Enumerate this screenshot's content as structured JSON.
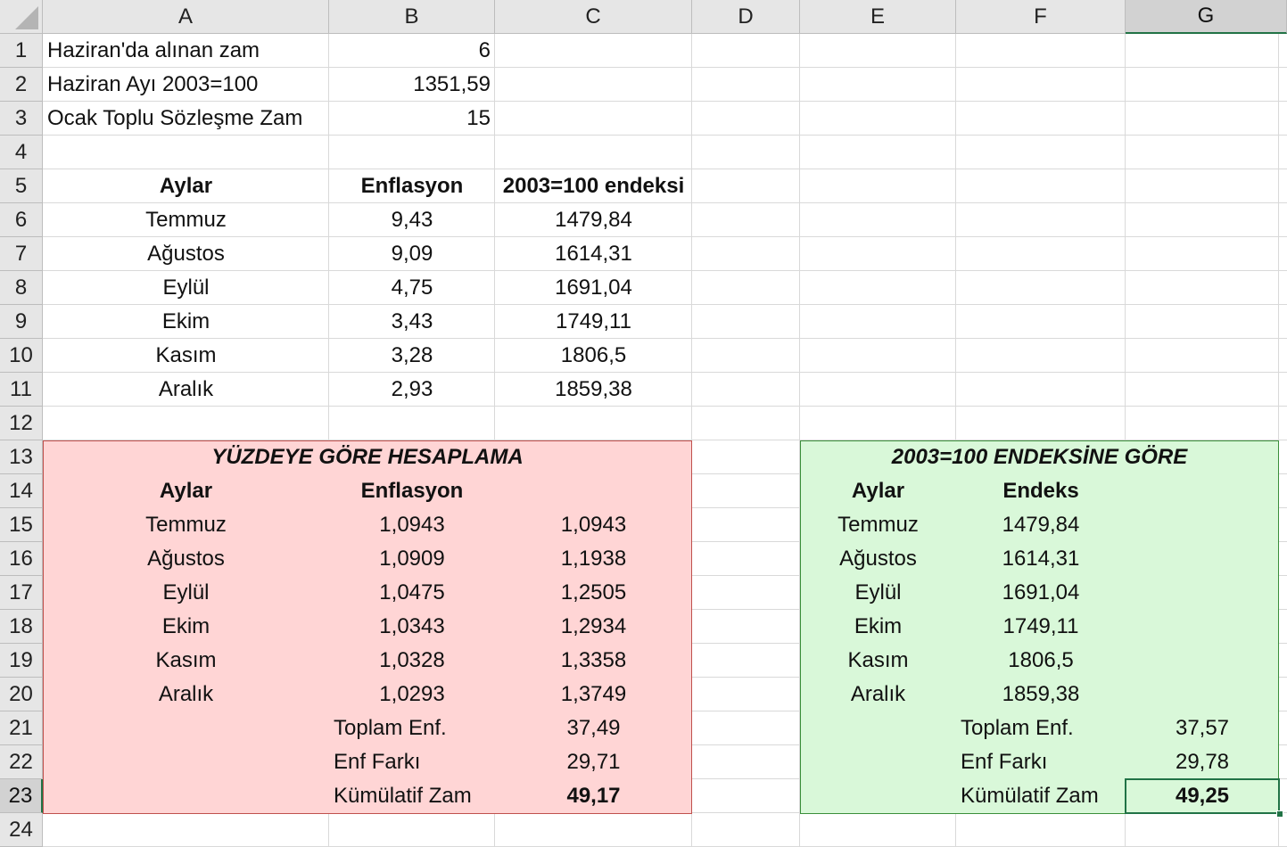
{
  "columns": [
    "A",
    "B",
    "C",
    "D",
    "E",
    "F",
    "G"
  ],
  "rows": [
    "1",
    "2",
    "3",
    "4",
    "5",
    "6",
    "7",
    "8",
    "9",
    "10",
    "11",
    "12",
    "13",
    "14",
    "15",
    "16",
    "17",
    "18",
    "19",
    "20",
    "21",
    "22",
    "23",
    "24"
  ],
  "header": {
    "r1_label": "Haziran'da alınan zam",
    "r1_value": "6",
    "r2_label": "Haziran Ayı 2003=100",
    "r2_value": "1351,59",
    "r3_label": "Ocak Toplu Sözleşme Zam",
    "r3_value": "15"
  },
  "top_table": {
    "headers": [
      "Aylar",
      "Enflasyon",
      "2003=100 endeksi"
    ],
    "rows": [
      [
        "Temmuz",
        "9,43",
        "1479,84"
      ],
      [
        "Ağustos",
        "9,09",
        "1614,31"
      ],
      [
        "Eylül",
        "4,75",
        "1691,04"
      ],
      [
        "Ekim",
        "3,43",
        "1749,11"
      ],
      [
        "Kasım",
        "3,28",
        "1806,5"
      ],
      [
        "Aralık",
        "2,93",
        "1859,38"
      ]
    ]
  },
  "percent_box": {
    "title": "YÜZDEYE GÖRE HESAPLAMA",
    "col_aylar": "Aylar",
    "col_enflasyon": "Enflasyon",
    "rows": [
      [
        "Temmuz",
        "1,0943",
        "1,0943"
      ],
      [
        "Ağustos",
        "1,0909",
        "1,1938"
      ],
      [
        "Eylül",
        "1,0475",
        "1,2505"
      ],
      [
        "Ekim",
        "1,0343",
        "1,2934"
      ],
      [
        "Kasım",
        "1,0328",
        "1,3358"
      ],
      [
        "Aralık",
        "1,0293",
        "1,3749"
      ]
    ],
    "toplam_label": "Toplam Enf.",
    "toplam_value": "37,49",
    "fark_label": "Enf Farkı",
    "fark_value": "29,71",
    "kumulatif_label": "Kümülatif Zam",
    "kumulatif_value": "49,17"
  },
  "index_box": {
    "title": "2003=100 ENDEKSİNE GÖRE",
    "col_aylar": "Aylar",
    "col_endeks": "Endeks",
    "rows": [
      [
        "Temmuz",
        "1479,84"
      ],
      [
        "Ağustos",
        "1614,31"
      ],
      [
        "Eylül",
        "1691,04"
      ],
      [
        "Ekim",
        "1749,11"
      ],
      [
        "Kasım",
        "1806,5"
      ],
      [
        "Aralık",
        "1859,38"
      ]
    ],
    "toplam_label": "Toplam Enf.",
    "toplam_value": "37,57",
    "fark_label": "Enf Farkı",
    "fark_value": "29,78",
    "kumulatif_label": "Kümülatif Zam",
    "kumulatif_value": "49,25"
  },
  "selection": {
    "active_cell": "G23",
    "active_column": "G",
    "active_row": "23"
  },
  "colors": {
    "pink_fill": "#ffd5d5",
    "green_fill": "#d9f8d9",
    "selection": "#217346"
  }
}
